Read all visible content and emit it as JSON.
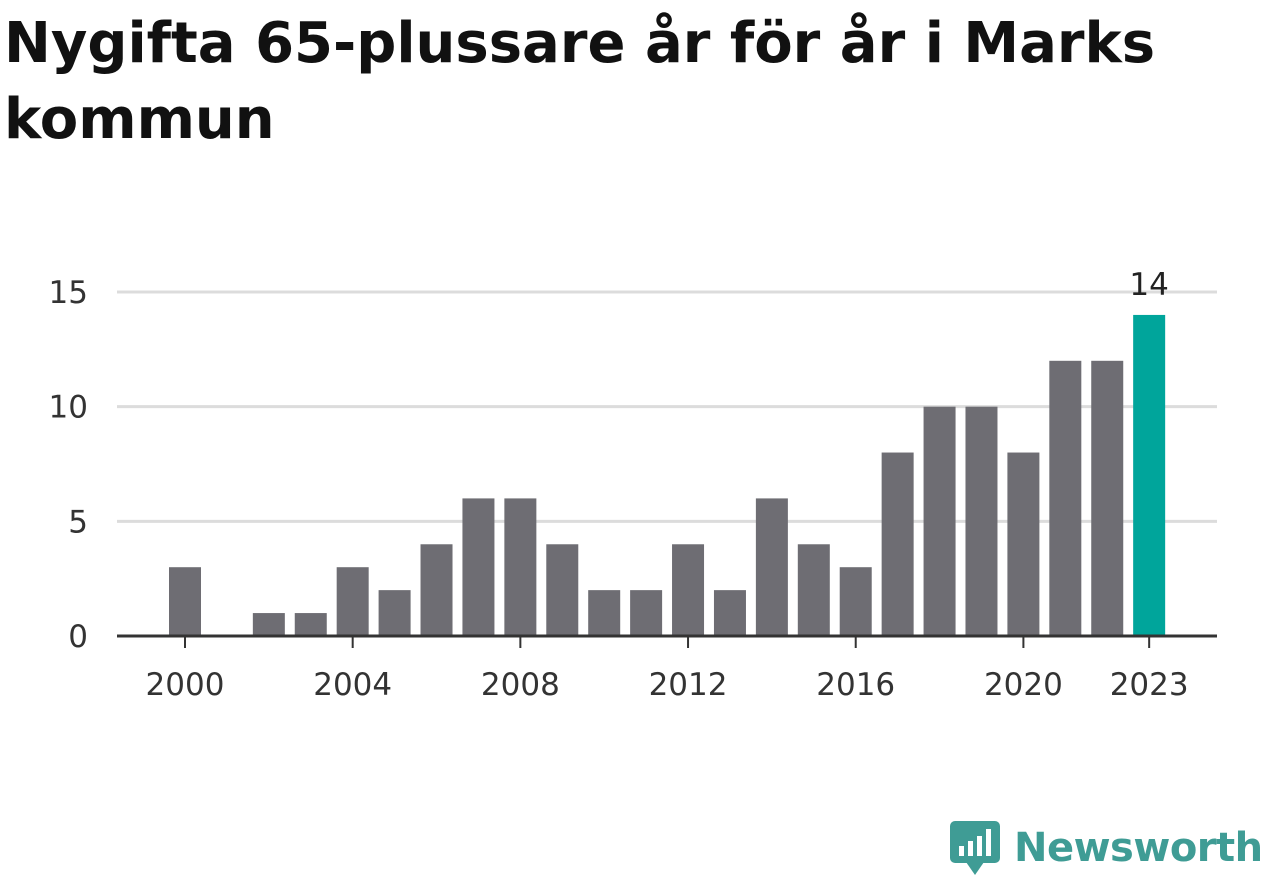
{
  "title": "Nygifta 65-plussare år för år i Marks kommun",
  "brand": {
    "name": "Newsworthy",
    "logo_icon": "newsworthy-bar-chart-icon",
    "color": "#3f9c95"
  },
  "colors": {
    "bar": "#6e6d73",
    "highlight": "#00a59b",
    "grid": "#dcdcdc",
    "axis": "#333333"
  },
  "chart_data": {
    "type": "bar",
    "categories": [
      2000,
      2001,
      2002,
      2003,
      2004,
      2005,
      2006,
      2007,
      2008,
      2009,
      2010,
      2011,
      2012,
      2013,
      2014,
      2015,
      2016,
      2017,
      2018,
      2019,
      2020,
      2021,
      2022,
      2023
    ],
    "values": [
      3,
      0,
      1,
      1,
      3,
      2,
      4,
      6,
      6,
      4,
      2,
      2,
      4,
      2,
      6,
      4,
      3,
      8,
      10,
      10,
      8,
      12,
      12,
      14
    ],
    "x_tick_labels": [
      "2000",
      "2004",
      "2008",
      "2012",
      "2016",
      "2020",
      "2023"
    ],
    "y_ticks": [
      0,
      5,
      10,
      15
    ],
    "ylim": [
      0,
      15
    ],
    "grid": true,
    "highlight_category": 2023,
    "highlight_label": "14"
  }
}
